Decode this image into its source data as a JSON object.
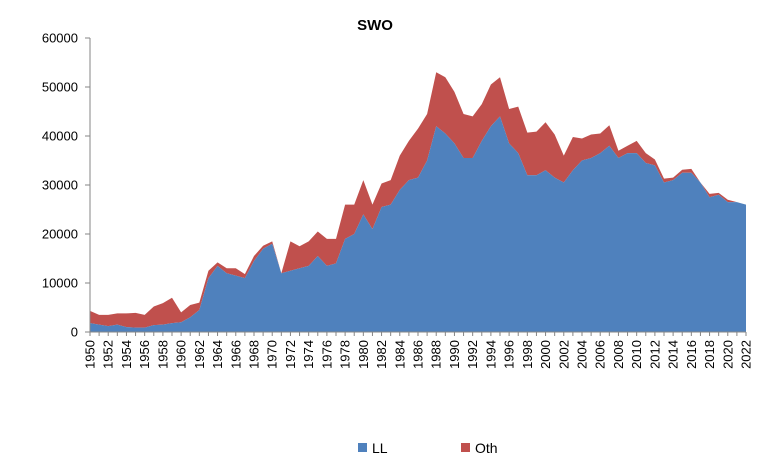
{
  "chart_data": {
    "type": "area",
    "stacked": true,
    "title": "SWO",
    "xlabel": "",
    "ylabel": "",
    "ylim": [
      0,
      60000
    ],
    "yticks": [
      0,
      10000,
      20000,
      30000,
      40000,
      50000,
      60000
    ],
    "xticks": [
      1950,
      1952,
      1954,
      1956,
      1958,
      1960,
      1962,
      1964,
      1966,
      1968,
      1970,
      1972,
      1974,
      1976,
      1978,
      1980,
      1982,
      1984,
      1986,
      1988,
      1990,
      1992,
      1994,
      1996,
      1998,
      2000,
      2002,
      2004,
      2006,
      2008,
      2010,
      2012,
      2014,
      2016,
      2018,
      2020,
      2022
    ],
    "grid": false,
    "legend_position": "bottom",
    "x": [
      1950,
      1951,
      1952,
      1953,
      1954,
      1955,
      1956,
      1957,
      1958,
      1959,
      1960,
      1961,
      1962,
      1963,
      1964,
      1965,
      1966,
      1967,
      1968,
      1969,
      1970,
      1971,
      1972,
      1973,
      1974,
      1975,
      1976,
      1977,
      1978,
      1979,
      1980,
      1981,
      1982,
      1983,
      1984,
      1985,
      1986,
      1987,
      1988,
      1989,
      1990,
      1991,
      1992,
      1993,
      1994,
      1995,
      1996,
      1997,
      1998,
      1999,
      2000,
      2001,
      2002,
      2003,
      2004,
      2005,
      2006,
      2007,
      2008,
      2009,
      2010,
      2011,
      2012,
      2013,
      2014,
      2015,
      2016,
      2017,
      2018,
      2019,
      2020,
      2021,
      2022
    ],
    "series": [
      {
        "name": "LL",
        "color": "#4f81bd",
        "values": [
          1800,
          1500,
          1200,
          1500,
          1000,
          900,
          900,
          1400,
          1500,
          1800,
          2000,
          3000,
          4500,
          11000,
          13500,
          12000,
          11500,
          11000,
          14500,
          17000,
          18000,
          12000,
          12500,
          13000,
          13500,
          15500,
          13500,
          14000,
          19000,
          20000,
          24000,
          21000,
          25500,
          26000,
          29000,
          31000,
          31500,
          35000,
          42000,
          40500,
          38500,
          35500,
          35500,
          39000,
          42000,
          44000,
          38500,
          36500,
          32000,
          32000,
          33000,
          31500,
          30500,
          33000,
          35000,
          35500,
          36500,
          38000,
          35500,
          36500,
          36500,
          34500,
          34000,
          30500,
          31000,
          32500,
          32500,
          30500,
          27500,
          28000,
          26500,
          26500,
          26000
        ]
      },
      {
        "name": "Oth",
        "color": "#c0504d",
        "values": [
          2500,
          2000,
          2300,
          2300,
          2800,
          3000,
          2600,
          3800,
          4400,
          5200,
          2000,
          2500,
          1500,
          1500,
          700,
          1000,
          1500,
          800,
          1000,
          600,
          500,
          0,
          6000,
          4500,
          5000,
          5000,
          5500,
          5000,
          7000,
          6000,
          7000,
          5000,
          4800,
          5000,
          7000,
          8000,
          10000,
          9500,
          11000,
          11500,
          10500,
          9000,
          8500,
          7500,
          8500,
          8000,
          7000,
          9500,
          8700,
          8900,
          9800,
          8800,
          5500,
          6800,
          4500,
          4800,
          4000,
          4200,
          1500,
          1500,
          2500,
          2000,
          1200,
          800,
          500,
          600,
          800,
          0,
          700,
          400,
          500,
          0,
          0
        ]
      }
    ]
  }
}
